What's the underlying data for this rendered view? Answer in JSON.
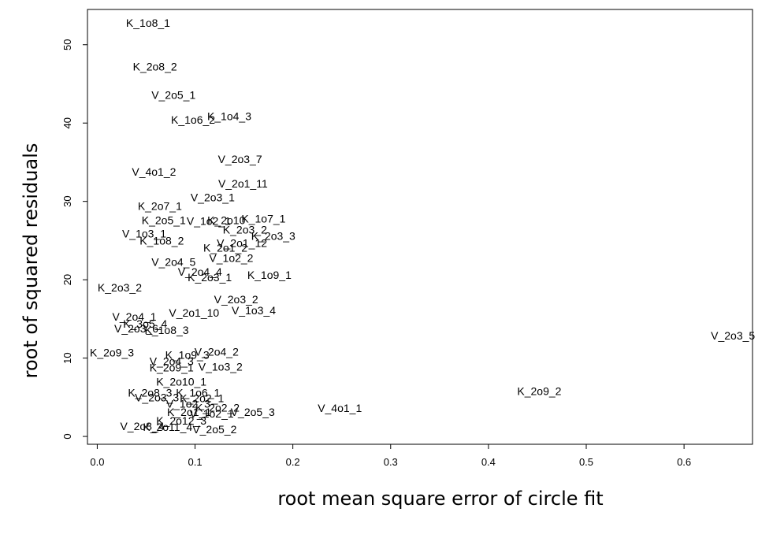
{
  "chart_data": {
    "type": "scatter",
    "title": "",
    "xlabel": "root mean square error of circle fit",
    "ylabel": "root of squared residuals",
    "xlim": [
      -0.01,
      0.67
    ],
    "ylim": [
      -1.0,
      54.5
    ],
    "x_ticks": [
      "0.0",
      "0.1",
      "0.2",
      "0.3",
      "0.4",
      "0.5",
      "0.6"
    ],
    "y_ticks": [
      "0",
      "10",
      "20",
      "30",
      "40",
      "50"
    ],
    "grid": false,
    "marker": "text-label",
    "points": [
      {
        "label": "K_1o8_1",
        "x": 0.052,
        "y": 52.8
      },
      {
        "label": "K_2o8_2",
        "x": 0.059,
        "y": 47.2
      },
      {
        "label": "V_2o5_1",
        "x": 0.078,
        "y": 43.6
      },
      {
        "label": "K_1o6_2",
        "x": 0.098,
        "y": 40.4
      },
      {
        "label": "K_1o4_3",
        "x": 0.135,
        "y": 40.9
      },
      {
        "label": "V_2o3_7",
        "x": 0.146,
        "y": 35.4
      },
      {
        "label": "V_4o1_2",
        "x": 0.058,
        "y": 33.8
      },
      {
        "label": "V_2o1_11",
        "x": 0.149,
        "y": 32.3
      },
      {
        "label": "V_2o3_1",
        "x": 0.118,
        "y": 30.5
      },
      {
        "label": "K_2o7_1",
        "x": 0.064,
        "y": 29.4
      },
      {
        "label": "K_2o5_1",
        "x": 0.068,
        "y": 27.6
      },
      {
        "label": "V_1o2_1",
        "x": 0.114,
        "y": 27.5
      },
      {
        "label": "K_2o10",
        "x": 0.132,
        "y": 27.6
      },
      {
        "label": "K_1o7_1",
        "x": 0.17,
        "y": 27.8
      },
      {
        "label": "V_1o3_1",
        "x": 0.048,
        "y": 25.9
      },
      {
        "label": "K_2o3_2",
        "x": 0.151,
        "y": 26.4
      },
      {
        "label": "K_2o3_3",
        "x": 0.18,
        "y": 25.6
      },
      {
        "label": "K_1o8_2",
        "x": 0.066,
        "y": 25.0
      },
      {
        "label": "V_2o1_12",
        "x": 0.148,
        "y": 24.7
      },
      {
        "label": "K_2o1_2",
        "x": 0.131,
        "y": 24.1
      },
      {
        "label": "V_1o2_2",
        "x": 0.137,
        "y": 22.8
      },
      {
        "label": "V_2o4_5",
        "x": 0.078,
        "y": 22.3
      },
      {
        "label": "V_2o4_4",
        "x": 0.105,
        "y": 21.0
      },
      {
        "label": "K_2o3_1",
        "x": 0.115,
        "y": 20.3
      },
      {
        "label": "K_1o9_1",
        "x": 0.176,
        "y": 20.6
      },
      {
        "label": "K_2o3_2",
        "x": 0.023,
        "y": 19.0
      },
      {
        "label": "V_2o3_2",
        "x": 0.142,
        "y": 17.5
      },
      {
        "label": "V_1o3_4",
        "x": 0.16,
        "y": 16.1
      },
      {
        "label": "V_2o1_10",
        "x": 0.099,
        "y": 15.8
      },
      {
        "label": "V_2o4_1",
        "x": 0.038,
        "y": 15.3
      },
      {
        "label": "K_3o5_4",
        "x": 0.049,
        "y": 14.4
      },
      {
        "label": "V_2o3_6",
        "x": 0.04,
        "y": 13.8
      },
      {
        "label": "K_1o8_3",
        "x": 0.071,
        "y": 13.6
      },
      {
        "label": "V_2o3_5",
        "x": 0.65,
        "y": 12.9
      },
      {
        "label": "K_2o9_3",
        "x": 0.015,
        "y": 10.7
      },
      {
        "label": "V_2o4_2",
        "x": 0.122,
        "y": 10.8
      },
      {
        "label": "K_1o9_3",
        "x": 0.092,
        "y": 10.4
      },
      {
        "label": "V_2o4_3",
        "x": 0.076,
        "y": 9.6
      },
      {
        "label": "K_2o9_1",
        "x": 0.076,
        "y": 8.8
      },
      {
        "label": "V_1o3_2",
        "x": 0.126,
        "y": 8.9
      },
      {
        "label": "K_2o10_1",
        "x": 0.086,
        "y": 7.0
      },
      {
        "label": "K_2o8_3",
        "x": 0.054,
        "y": 5.6
      },
      {
        "label": "K_1o6_1",
        "x": 0.103,
        "y": 5.6
      },
      {
        "label": "V_2o3_3",
        "x": 0.061,
        "y": 5.0
      },
      {
        "label": "K_2o2_1",
        "x": 0.107,
        "y": 4.9
      },
      {
        "label": "V_1o2_3",
        "x": 0.093,
        "y": 4.2
      },
      {
        "label": "K_2o2_2",
        "x": 0.123,
        "y": 3.7
      },
      {
        "label": "V_4o1_1",
        "x": 0.248,
        "y": 3.6
      },
      {
        "label": "V_2o5_3",
        "x": 0.159,
        "y": 3.1
      },
      {
        "label": "K_2o1_1",
        "x": 0.094,
        "y": 3.1
      },
      {
        "label": "V_1o2_1",
        "x": 0.117,
        "y": 2.9
      },
      {
        "label": "K_2o12_3",
        "x": 0.086,
        "y": 2.0
      },
      {
        "label": "V_2o8_4",
        "x": 0.046,
        "y": 1.3
      },
      {
        "label": "K_2o11_4",
        "x": 0.072,
        "y": 1.2
      },
      {
        "label": "V_2o5_2",
        "x": 0.12,
        "y": 0.9
      },
      {
        "label": "K_2o9_2",
        "x": 0.452,
        "y": 5.8
      }
    ]
  }
}
